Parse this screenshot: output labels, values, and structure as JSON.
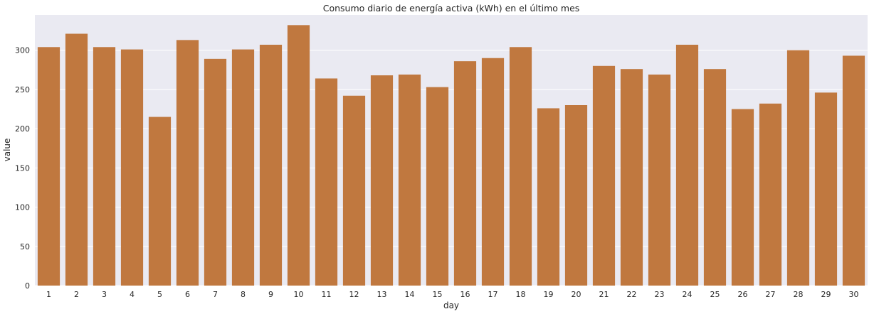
{
  "chart_data": {
    "type": "bar",
    "title": "Consumo diario de energía activa (kWh) en el último mes",
    "xlabel": "day",
    "ylabel": "value",
    "categories": [
      "1",
      "2",
      "3",
      "4",
      "5",
      "6",
      "7",
      "8",
      "9",
      "10",
      "11",
      "12",
      "13",
      "14",
      "15",
      "16",
      "17",
      "18",
      "19",
      "20",
      "21",
      "22",
      "23",
      "24",
      "25",
      "26",
      "27",
      "28",
      "29",
      "30"
    ],
    "values": [
      304,
      321,
      304,
      301,
      215,
      313,
      289,
      301,
      307,
      332,
      264,
      242,
      268,
      269,
      253,
      286,
      290,
      304,
      226,
      230,
      280,
      276,
      269,
      307,
      276,
      225,
      232,
      300,
      246,
      293
    ],
    "ylim": [
      0,
      345
    ],
    "yticks": [
      0,
      50,
      100,
      150,
      200,
      250,
      300
    ],
    "grid": true,
    "legend": "none",
    "colors": {
      "bar": "#c0783f",
      "plot_background": "#eaeaf2",
      "grid": "#ffffff"
    }
  }
}
